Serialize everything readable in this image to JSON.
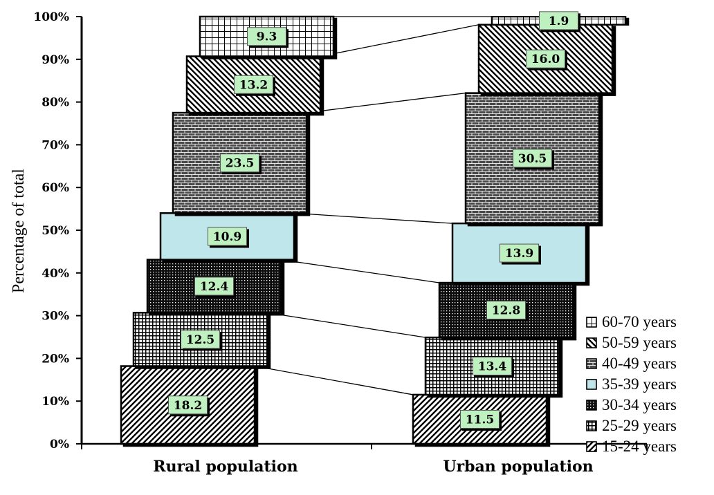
{
  "chart_data": {
    "type": "bar",
    "stacked": true,
    "percent_scale": true,
    "categories": [
      "Rural population",
      "Urban population"
    ],
    "ylabel": "Percentage of total",
    "xlabel": "",
    "title": "",
    "ylim": [
      0,
      100
    ],
    "y_ticks": [
      "0%",
      "10%",
      "20%",
      "30%",
      "40%",
      "50%",
      "60%",
      "70%",
      "80%",
      "90%",
      "100%"
    ],
    "grid": false,
    "legend_position": "right",
    "series": [
      {
        "name": "15-24 years",
        "values": [
          18.2,
          11.5
        ],
        "labels": [
          "18.2",
          "11.5"
        ],
        "pattern": "diag-up",
        "color": "#000000"
      },
      {
        "name": "25-29 years",
        "values": [
          12.5,
          13.4
        ],
        "labels": [
          "12.5",
          "13.4"
        ],
        "pattern": "grid",
        "color": "#000000"
      },
      {
        "name": "30-34 years",
        "values": [
          12.4,
          12.8
        ],
        "labels": [
          "12.4",
          "12.8"
        ],
        "pattern": "dense-dots",
        "color": "#000000"
      },
      {
        "name": "35-39 years",
        "values": [
          10.9,
          13.9
        ],
        "labels": [
          "10.9",
          "13.9"
        ],
        "pattern": "solid",
        "color": "#bfe6ea"
      },
      {
        "name": "40-49 years",
        "values": [
          23.5,
          30.5
        ],
        "labels": [
          "23.5",
          "30.5"
        ],
        "pattern": "brick",
        "color": "#000000"
      },
      {
        "name": "50-59 years",
        "values": [
          13.2,
          16.0
        ],
        "labels": [
          "13.2",
          "16.0"
        ],
        "pattern": "diag-down",
        "color": "#000000"
      },
      {
        "name": "60-70 years",
        "values": [
          9.3,
          1.9
        ],
        "labels": [
          "9.3",
          "1.9"
        ],
        "pattern": "sparse-grid",
        "color": "#000000"
      }
    ],
    "label_box_color": "#bff0bf"
  }
}
